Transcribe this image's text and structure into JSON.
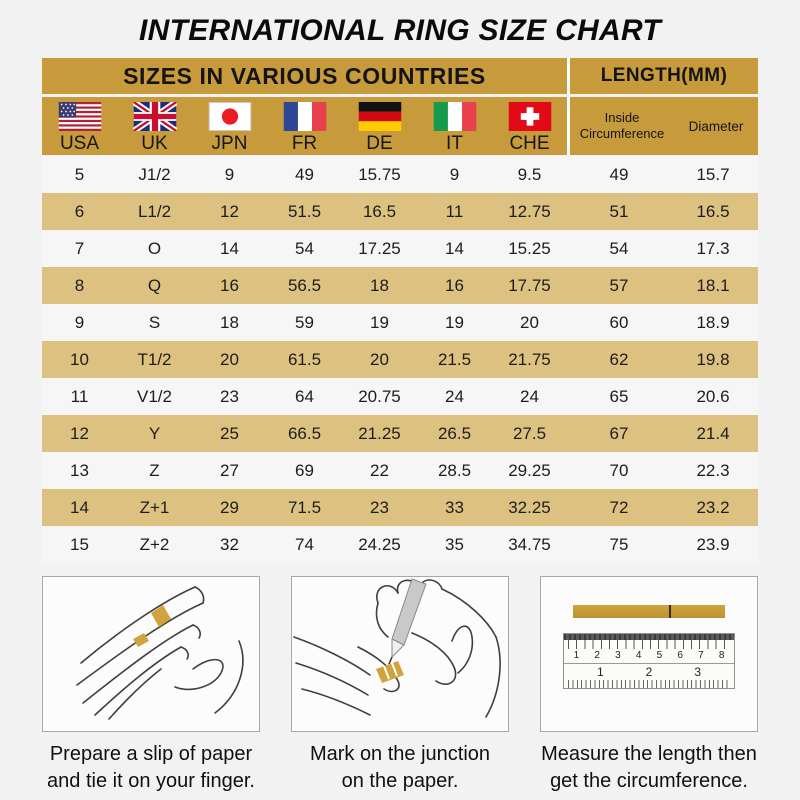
{
  "chart_data": {
    "type": "table",
    "title": "INTERNATIONAL RING SIZE CHART",
    "section_headers": {
      "left": "SIZES IN VARIOUS COUNTRIES",
      "right": "LENGTH(MM)"
    },
    "columns": [
      "USA",
      "UK",
      "JPN",
      "FR",
      "DE",
      "IT",
      "CHE",
      "Inside Circumference",
      "Diameter"
    ],
    "rows": [
      [
        "5",
        "J1/2",
        "9",
        "49",
        "15.75",
        "9",
        "9.5",
        "49",
        "15.7"
      ],
      [
        "6",
        "L1/2",
        "12",
        "51.5",
        "16.5",
        "11",
        "12.75",
        "51",
        "16.5"
      ],
      [
        "7",
        "O",
        "14",
        "54",
        "17.25",
        "14",
        "15.25",
        "54",
        "17.3"
      ],
      [
        "8",
        "Q",
        "16",
        "56.5",
        "18",
        "16",
        "17.75",
        "57",
        "18.1"
      ],
      [
        "9",
        "S",
        "18",
        "59",
        "19",
        "19",
        "20",
        "60",
        "18.9"
      ],
      [
        "10",
        "T1/2",
        "20",
        "61.5",
        "20",
        "21.5",
        "21.75",
        "62",
        "19.8"
      ],
      [
        "11",
        "V1/2",
        "23",
        "64",
        "20.75",
        "24",
        "24",
        "65",
        "20.6"
      ],
      [
        "12",
        "Y",
        "25",
        "66.5",
        "21.25",
        "26.5",
        "27.5",
        "67",
        "21.4"
      ],
      [
        "13",
        "Z",
        "27",
        "69",
        "22",
        "28.5",
        "29.25",
        "70",
        "22.3"
      ],
      [
        "14",
        "Z+1",
        "29",
        "71.5",
        "23",
        "33",
        "32.25",
        "72",
        "23.2"
      ],
      [
        "15",
        "Z+2",
        "32",
        "74",
        "24.25",
        "35",
        "34.75",
        "75",
        "23.9"
      ]
    ]
  },
  "flags": [
    {
      "icon": "usa-flag-icon"
    },
    {
      "icon": "uk-flag-icon"
    },
    {
      "icon": "japan-flag-icon"
    },
    {
      "icon": "france-flag-icon"
    },
    {
      "icon": "germany-flag-icon"
    },
    {
      "icon": "italy-flag-icon"
    },
    {
      "icon": "switzerland-flag-icon"
    }
  ],
  "instructions": [
    {
      "illustration": "hand-with-paper-slip-illustration",
      "caption": [
        "Prepare a slip of paper",
        "and tie it on your finger."
      ]
    },
    {
      "illustration": "pen-marking-paper-illustration",
      "caption": [
        "Mark on the junction",
        "on the paper."
      ]
    },
    {
      "illustration": "ruler-measuring-illustration",
      "caption": [
        "Measure the length then",
        "get the circumference."
      ],
      "ruler": {
        "top_scale": [
          "1",
          "2",
          "3",
          "4",
          "5",
          "6",
          "7",
          "8"
        ],
        "bottom_scale": [
          "1",
          "2",
          "3"
        ]
      }
    }
  ],
  "colors": {
    "header_gold": "#C79B3C",
    "row_tan": "#DDC180",
    "row_light": "#F6F6F6",
    "paper_gold": "#D2A33C"
  }
}
